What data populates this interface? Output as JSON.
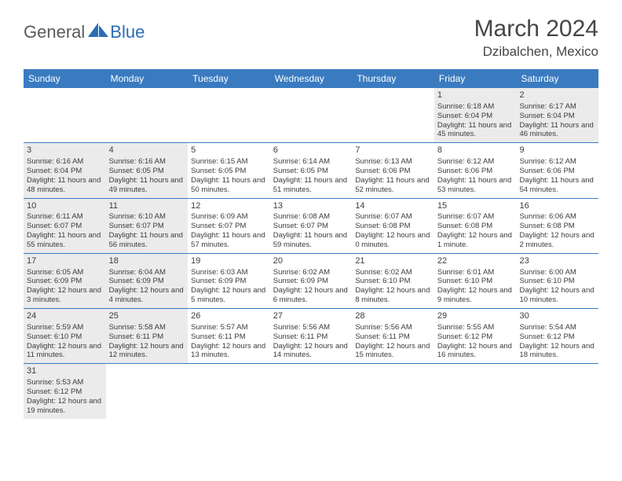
{
  "logo": {
    "general": "General",
    "blue": "Blue",
    "shape_color": "#2a6db5"
  },
  "header": {
    "title": "March 2024",
    "location": "Dzibalchen, Mexico"
  },
  "colors": {
    "header_bg": "#3a7bc0",
    "header_text": "#ffffff",
    "shade_bg": "#ebebeb",
    "border": "#3a7bc0",
    "text": "#3c3c3c"
  },
  "day_names": [
    "Sunday",
    "Monday",
    "Tuesday",
    "Wednesday",
    "Thursday",
    "Friday",
    "Saturday"
  ],
  "weeks": [
    [
      {
        "empty": true
      },
      {
        "empty": true
      },
      {
        "empty": true
      },
      {
        "empty": true
      },
      {
        "empty": true
      },
      {
        "day": "1",
        "shaded": true,
        "sunrise": "Sunrise: 6:18 AM",
        "sunset": "Sunset: 6:04 PM",
        "daylight": "Daylight: 11 hours and 45 minutes."
      },
      {
        "day": "2",
        "shaded": true,
        "sunrise": "Sunrise: 6:17 AM",
        "sunset": "Sunset: 6:04 PM",
        "daylight": "Daylight: 11 hours and 46 minutes."
      }
    ],
    [
      {
        "day": "3",
        "shaded": true,
        "sunrise": "Sunrise: 6:16 AM",
        "sunset": "Sunset: 6:04 PM",
        "daylight": "Daylight: 11 hours and 48 minutes."
      },
      {
        "day": "4",
        "shaded": true,
        "sunrise": "Sunrise: 6:16 AM",
        "sunset": "Sunset: 6:05 PM",
        "daylight": "Daylight: 11 hours and 49 minutes."
      },
      {
        "day": "5",
        "shaded": false,
        "sunrise": "Sunrise: 6:15 AM",
        "sunset": "Sunset: 6:05 PM",
        "daylight": "Daylight: 11 hours and 50 minutes."
      },
      {
        "day": "6",
        "shaded": false,
        "sunrise": "Sunrise: 6:14 AM",
        "sunset": "Sunset: 6:05 PM",
        "daylight": "Daylight: 11 hours and 51 minutes."
      },
      {
        "day": "7",
        "shaded": false,
        "sunrise": "Sunrise: 6:13 AM",
        "sunset": "Sunset: 6:06 PM",
        "daylight": "Daylight: 11 hours and 52 minutes."
      },
      {
        "day": "8",
        "shaded": false,
        "sunrise": "Sunrise: 6:12 AM",
        "sunset": "Sunset: 6:06 PM",
        "daylight": "Daylight: 11 hours and 53 minutes."
      },
      {
        "day": "9",
        "shaded": false,
        "sunrise": "Sunrise: 6:12 AM",
        "sunset": "Sunset: 6:06 PM",
        "daylight": "Daylight: 11 hours and 54 minutes."
      }
    ],
    [
      {
        "day": "10",
        "shaded": true,
        "sunrise": "Sunrise: 6:11 AM",
        "sunset": "Sunset: 6:07 PM",
        "daylight": "Daylight: 11 hours and 55 minutes."
      },
      {
        "day": "11",
        "shaded": true,
        "sunrise": "Sunrise: 6:10 AM",
        "sunset": "Sunset: 6:07 PM",
        "daylight": "Daylight: 11 hours and 56 minutes."
      },
      {
        "day": "12",
        "shaded": false,
        "sunrise": "Sunrise: 6:09 AM",
        "sunset": "Sunset: 6:07 PM",
        "daylight": "Daylight: 11 hours and 57 minutes."
      },
      {
        "day": "13",
        "shaded": false,
        "sunrise": "Sunrise: 6:08 AM",
        "sunset": "Sunset: 6:07 PM",
        "daylight": "Daylight: 11 hours and 59 minutes."
      },
      {
        "day": "14",
        "shaded": false,
        "sunrise": "Sunrise: 6:07 AM",
        "sunset": "Sunset: 6:08 PM",
        "daylight": "Daylight: 12 hours and 0 minutes."
      },
      {
        "day": "15",
        "shaded": false,
        "sunrise": "Sunrise: 6:07 AM",
        "sunset": "Sunset: 6:08 PM",
        "daylight": "Daylight: 12 hours and 1 minute."
      },
      {
        "day": "16",
        "shaded": false,
        "sunrise": "Sunrise: 6:06 AM",
        "sunset": "Sunset: 6:08 PM",
        "daylight": "Daylight: 12 hours and 2 minutes."
      }
    ],
    [
      {
        "day": "17",
        "shaded": true,
        "sunrise": "Sunrise: 6:05 AM",
        "sunset": "Sunset: 6:09 PM",
        "daylight": "Daylight: 12 hours and 3 minutes."
      },
      {
        "day": "18",
        "shaded": true,
        "sunrise": "Sunrise: 6:04 AM",
        "sunset": "Sunset: 6:09 PM",
        "daylight": "Daylight: 12 hours and 4 minutes."
      },
      {
        "day": "19",
        "shaded": false,
        "sunrise": "Sunrise: 6:03 AM",
        "sunset": "Sunset: 6:09 PM",
        "daylight": "Daylight: 12 hours and 5 minutes."
      },
      {
        "day": "20",
        "shaded": false,
        "sunrise": "Sunrise: 6:02 AM",
        "sunset": "Sunset: 6:09 PM",
        "daylight": "Daylight: 12 hours and 6 minutes."
      },
      {
        "day": "21",
        "shaded": false,
        "sunrise": "Sunrise: 6:02 AM",
        "sunset": "Sunset: 6:10 PM",
        "daylight": "Daylight: 12 hours and 8 minutes."
      },
      {
        "day": "22",
        "shaded": false,
        "sunrise": "Sunrise: 6:01 AM",
        "sunset": "Sunset: 6:10 PM",
        "daylight": "Daylight: 12 hours and 9 minutes."
      },
      {
        "day": "23",
        "shaded": false,
        "sunrise": "Sunrise: 6:00 AM",
        "sunset": "Sunset: 6:10 PM",
        "daylight": "Daylight: 12 hours and 10 minutes."
      }
    ],
    [
      {
        "day": "24",
        "shaded": true,
        "sunrise": "Sunrise: 5:59 AM",
        "sunset": "Sunset: 6:10 PM",
        "daylight": "Daylight: 12 hours and 11 minutes."
      },
      {
        "day": "25",
        "shaded": true,
        "sunrise": "Sunrise: 5:58 AM",
        "sunset": "Sunset: 6:11 PM",
        "daylight": "Daylight: 12 hours and 12 minutes."
      },
      {
        "day": "26",
        "shaded": false,
        "sunrise": "Sunrise: 5:57 AM",
        "sunset": "Sunset: 6:11 PM",
        "daylight": "Daylight: 12 hours and 13 minutes."
      },
      {
        "day": "27",
        "shaded": false,
        "sunrise": "Sunrise: 5:56 AM",
        "sunset": "Sunset: 6:11 PM",
        "daylight": "Daylight: 12 hours and 14 minutes."
      },
      {
        "day": "28",
        "shaded": false,
        "sunrise": "Sunrise: 5:56 AM",
        "sunset": "Sunset: 6:11 PM",
        "daylight": "Daylight: 12 hours and 15 minutes."
      },
      {
        "day": "29",
        "shaded": false,
        "sunrise": "Sunrise: 5:55 AM",
        "sunset": "Sunset: 6:12 PM",
        "daylight": "Daylight: 12 hours and 16 minutes."
      },
      {
        "day": "30",
        "shaded": false,
        "sunrise": "Sunrise: 5:54 AM",
        "sunset": "Sunset: 6:12 PM",
        "daylight": "Daylight: 12 hours and 18 minutes."
      }
    ],
    [
      {
        "day": "31",
        "shaded": true,
        "sunrise": "Sunrise: 5:53 AM",
        "sunset": "Sunset: 6:12 PM",
        "daylight": "Daylight: 12 hours and 19 minutes."
      },
      {
        "empty": true
      },
      {
        "empty": true
      },
      {
        "empty": true
      },
      {
        "empty": true
      },
      {
        "empty": true
      },
      {
        "empty": true
      }
    ]
  ]
}
